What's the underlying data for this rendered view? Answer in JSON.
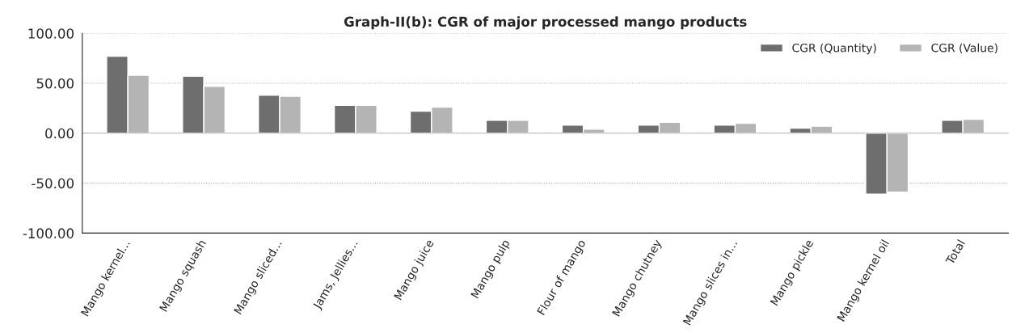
{
  "chart_data": {
    "type": "bar",
    "title": "Graph-II(b): CGR of major processed mango products",
    "categories": [
      "Mango kernel...",
      "Mango squash",
      "Mango sliced...",
      "Jams, Jellies...",
      "Mango juice",
      "Mango pulp",
      "Flour of mango",
      "Mango chutney",
      "Mango slices in...",
      "Mango pickle",
      "Mango kernel oil",
      "Total"
    ],
    "series": [
      {
        "name": "CGR (Quantity)",
        "color": "#6e6e6e",
        "values": [
          77,
          57,
          38,
          28,
          22,
          13,
          8,
          8,
          8,
          5,
          -61,
          13
        ]
      },
      {
        "name": "CGR (Value)",
        "color": "#b4b4b4",
        "values": [
          58,
          47,
          37,
          28,
          26,
          13,
          4,
          11,
          10,
          7,
          -59,
          14
        ]
      }
    ],
    "ylim": [
      -100,
      100
    ],
    "yticks": [
      {
        "value": -100,
        "label": "-100.00"
      },
      {
        "value": -50,
        "label": "-50.00"
      },
      {
        "value": 0,
        "label": "0.00"
      },
      {
        "value": 50,
        "label": "50.00"
      },
      {
        "value": 100,
        "label": "100.00"
      }
    ],
    "grid": "y",
    "legend": "top right"
  }
}
